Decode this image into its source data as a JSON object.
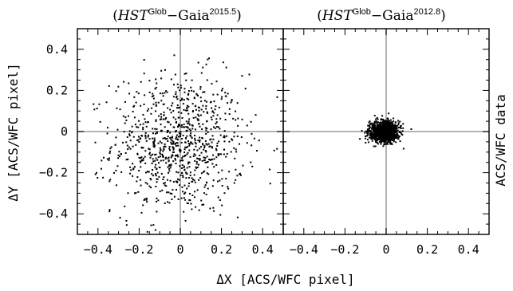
{
  "chart_data": [
    {
      "type": "scatter",
      "panel_title_prefix": "(",
      "panel_title_italic": "HST",
      "panel_title_sup1": "Glob",
      "panel_title_mid": "−Gaia",
      "panel_title_sup2": "2015.5",
      "panel_title_suffix": ")",
      "xlabel": "ΔX [ACS/WFC pixel]",
      "ylabel": "ΔY [ACS/WFC pixel]",
      "xlim": [
        -0.5,
        0.5
      ],
      "ylim": [
        -0.5,
        0.5
      ],
      "xticks": [
        -0.4,
        -0.2,
        0,
        0.2,
        0.4
      ],
      "xtick_labels": [
        "−0.4",
        "−0.2",
        "0",
        "0.2",
        "0.4"
      ],
      "yticks": [
        -0.4,
        -0.2,
        0,
        0.2,
        0.4
      ],
      "ytick_labels": [
        "−0.4",
        "−0.2",
        "0",
        "0.2",
        "0.4"
      ],
      "grid": false,
      "zero_lines": true,
      "distribution": {
        "n_points": 900,
        "mean_x": -0.01,
        "mean_y": -0.06,
        "sigma_x": 0.16,
        "sigma_y": 0.17
      }
    },
    {
      "type": "scatter",
      "panel_title_prefix": "(",
      "panel_title_italic": "HST",
      "panel_title_sup1": "Glob",
      "panel_title_mid": "−Gaia",
      "panel_title_sup2": "2012.8",
      "panel_title_suffix": ")",
      "xlabel": "ΔX [ACS/WFC pixel]",
      "xlim": [
        -0.5,
        0.5
      ],
      "ylim": [
        -0.5,
        0.5
      ],
      "xticks": [
        -0.4,
        -0.2,
        0,
        0.2,
        0.4
      ],
      "xtick_labels": [
        "−0.4",
        "−0.2",
        "0",
        "0.2",
        "0.4"
      ],
      "yticks": [
        -0.4,
        -0.2,
        0,
        0.2,
        0.4
      ],
      "grid": false,
      "zero_lines": true,
      "side_label": "ACS/WFC data",
      "distribution": {
        "n_points": 1100,
        "mean_x": -0.01,
        "mean_y": 0.0,
        "sigma_x": 0.035,
        "sigma_y": 0.025
      }
    }
  ]
}
